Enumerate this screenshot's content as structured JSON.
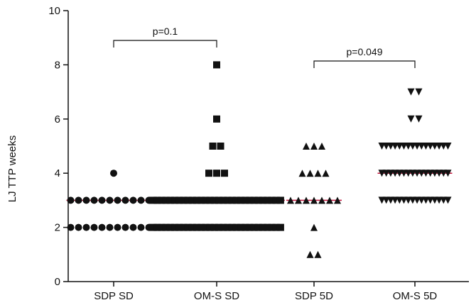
{
  "chart_data": {
    "type": "scatter",
    "title": "",
    "xlabel": "",
    "ylabel": "LJ TTP weeks",
    "ylim": [
      0,
      10
    ],
    "yticks": [
      "0",
      "2",
      "4",
      "6",
      "8",
      "10"
    ],
    "categories": [
      "SDP SD",
      "OM-S SD",
      "SDP 5D",
      "OM-S 5D"
    ],
    "series": [
      {
        "category": "SDP SD",
        "marker": "circle",
        "median": 3,
        "points": [
          {
            "y": 4,
            "count": 1
          },
          {
            "y": 3,
            "count": 12
          },
          {
            "y": 2,
            "count": 12
          }
        ]
      },
      {
        "category": "OM-S SD",
        "marker": "square",
        "median": 3,
        "points": [
          {
            "y": 8,
            "count": 1
          },
          {
            "y": 6,
            "count": 1
          },
          {
            "y": 5,
            "count": 2
          },
          {
            "y": 4,
            "count": 3
          },
          {
            "y": 3,
            "count": 30
          },
          {
            "y": 2,
            "count": 30
          }
        ]
      },
      {
        "category": "SDP 5D",
        "marker": "triangle-up",
        "median": 3,
        "points": [
          {
            "y": 5,
            "count": 3
          },
          {
            "y": 4,
            "count": 4
          },
          {
            "y": 3,
            "count": 7
          },
          {
            "y": 2,
            "count": 1
          },
          {
            "y": 1,
            "count": 2
          }
        ]
      },
      {
        "category": "OM-S 5D",
        "marker": "triangle-down",
        "median": 4,
        "points": [
          {
            "y": 7,
            "count": 2
          },
          {
            "y": 6,
            "count": 2
          },
          {
            "y": 5,
            "count": 16
          },
          {
            "y": 4,
            "count": 16
          },
          {
            "y": 3,
            "count": 16
          }
        ]
      }
    ],
    "comparisons": [
      {
        "from": "SDP SD",
        "to": "OM-S SD",
        "label": "p=0.1"
      },
      {
        "from": "SDP 5D",
        "to": "OM-S 5D",
        "label": "p=0.049"
      }
    ],
    "colors": {
      "marker": "#111111",
      "median_line": "#c0143c",
      "axis": "#111111"
    },
    "grid": false
  }
}
